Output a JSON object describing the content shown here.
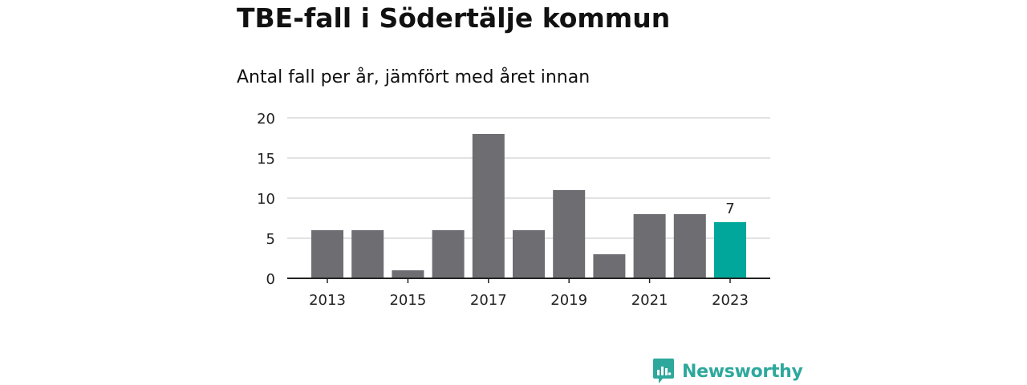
{
  "title": "TBE-fall i Södertälje kommun",
  "subtitle": "Antal fall per år, jämfört med året innan",
  "brand": {
    "name": "Newsworthy",
    "icon": "newsworthy-logo-icon",
    "color": "#2ea89c"
  },
  "chart_data": {
    "type": "bar",
    "categories": [
      "2013",
      "2014",
      "2015",
      "2016",
      "2017",
      "2018",
      "2019",
      "2020",
      "2021",
      "2022",
      "2023"
    ],
    "values": [
      6,
      6,
      1,
      6,
      18,
      6,
      11,
      3,
      8,
      8,
      7
    ],
    "x_tick_labels": [
      "2013",
      "2015",
      "2017",
      "2019",
      "2021",
      "2023"
    ],
    "y_ticks": [
      0,
      5,
      10,
      15,
      20
    ],
    "ylim": [
      0,
      20
    ],
    "xlabel": "",
    "ylabel": "",
    "grid": true,
    "legend": "none",
    "highlight": {
      "category": "2023",
      "value_label": "7"
    },
    "colors": {
      "bar": "#6e6d72",
      "highlight": "#00a79a",
      "grid": "#d9d9d9",
      "axis": "#222222"
    }
  }
}
